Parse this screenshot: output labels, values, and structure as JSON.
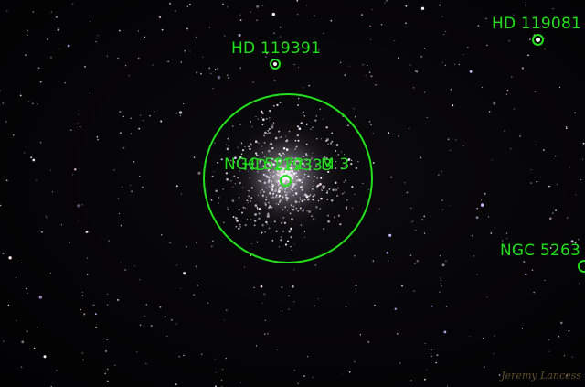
{
  "objects": [
    {
      "id": "hd119391",
      "name": "HD 119391"
    },
    {
      "id": "hd119081",
      "name": "HD 119081"
    },
    {
      "id": "ngc5272",
      "name": "NGC 5272"
    },
    {
      "id": "m3",
      "name": "M 3"
    },
    {
      "id": "hd119333",
      "name": "HD 119333"
    },
    {
      "id": "ngc5263",
      "name": "NGC 5263"
    }
  ],
  "colors": {
    "annotation": "#22e01c",
    "background": "#040305"
  },
  "signature": "Jeremy Lancess"
}
